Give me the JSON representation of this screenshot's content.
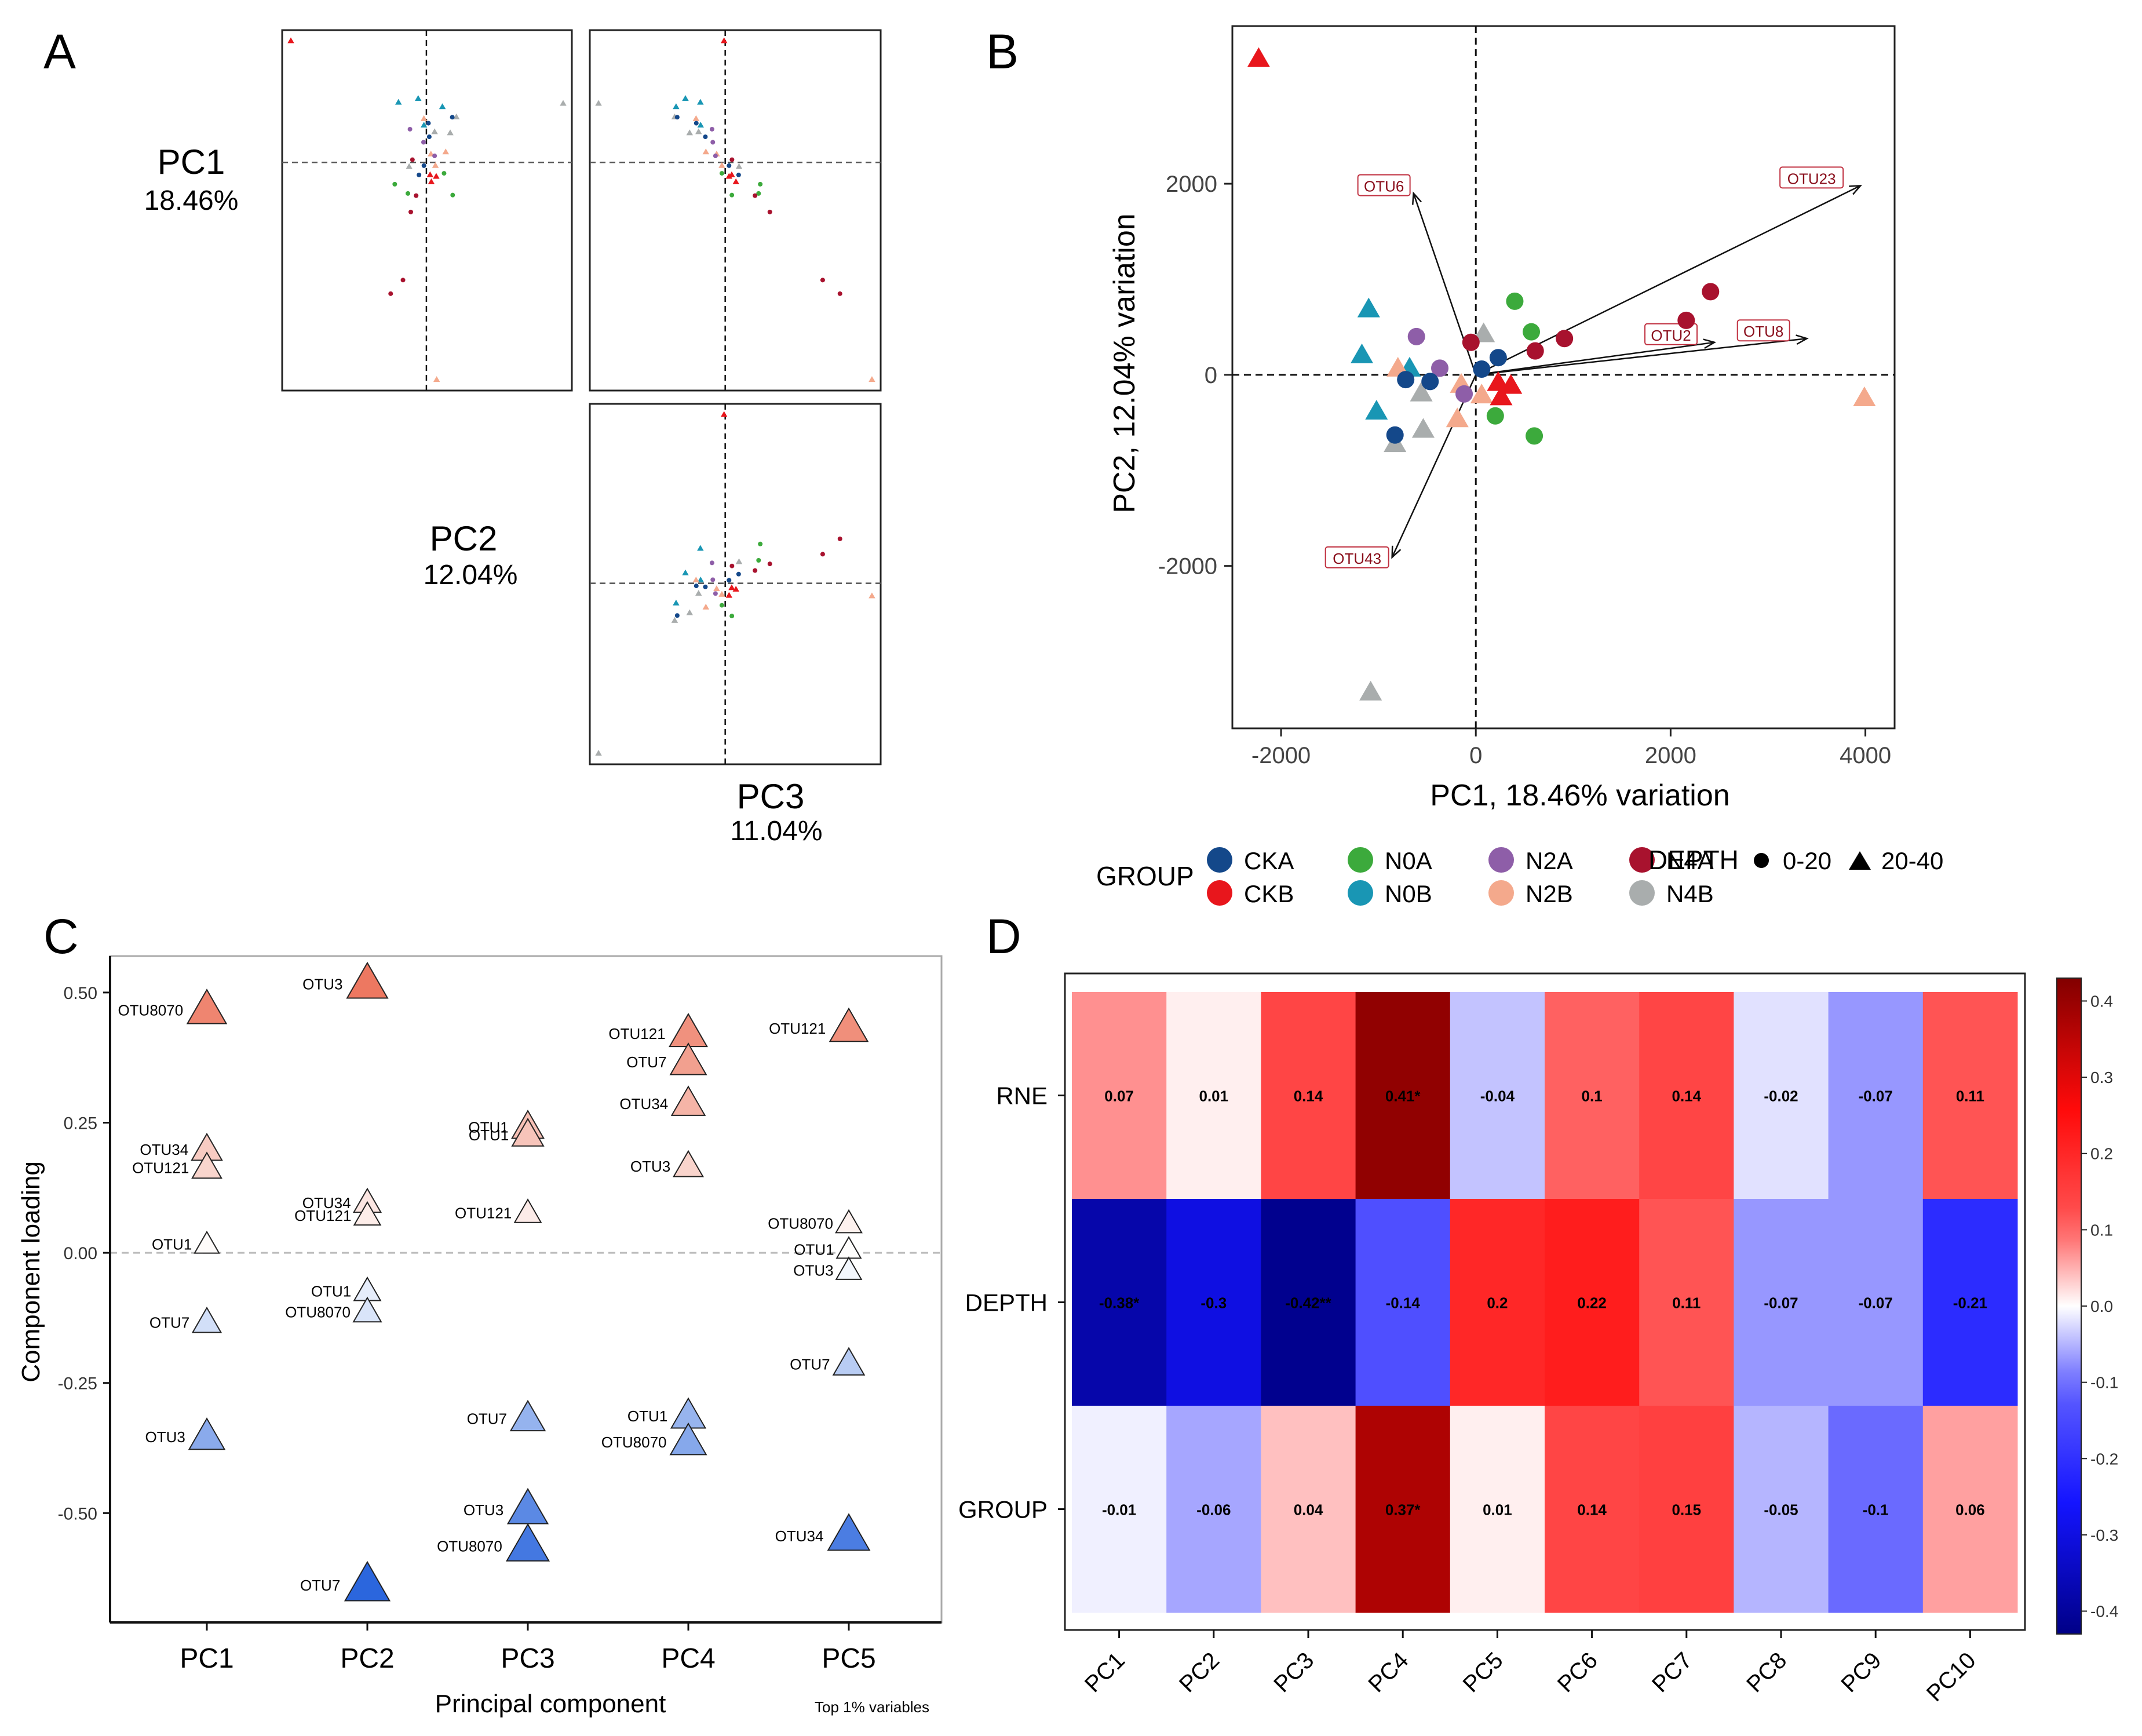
{
  "panels": {
    "A": {
      "letter": "A",
      "labels": [
        {
          "pc": "PC1",
          "pct": "18.46%"
        },
        {
          "pc": "PC2",
          "pct": "12.04%"
        },
        {
          "pc": "PC3",
          "pct": "11.04%"
        }
      ]
    },
    "B": {
      "letter": "B"
    },
    "C": {
      "letter": "C"
    },
    "D": {
      "letter": "D"
    }
  },
  "legend": {
    "group_title": "GROUP",
    "depth_title": "DEPTH",
    "groups": [
      {
        "name": "CKA",
        "color": "#14488a"
      },
      {
        "name": "N0A",
        "color": "#3caa3c"
      },
      {
        "name": "N2A",
        "color": "#8e5ea8"
      },
      {
        "name": "N4A",
        "color": "#a8122e"
      },
      {
        "name": "CKB",
        "color": "#e8161c"
      },
      {
        "name": "N0B",
        "color": "#1996b4"
      },
      {
        "name": "N2B",
        "color": "#f4a98c"
      },
      {
        "name": "N4B",
        "color": "#a9adad"
      }
    ],
    "depths": [
      {
        "name": "0-20",
        "shape": "circle"
      },
      {
        "name": "20-40",
        "shape": "triangle"
      }
    ]
  },
  "chart_data": [
    {
      "id": "B",
      "type": "scatter",
      "title": "",
      "xlabel": "PC1, 18.46% variation",
      "ylabel": "PC2, 12.04% variation",
      "xlim": [
        -2500,
        4300
      ],
      "ylim": [
        -3700,
        3650
      ],
      "xticks": [
        -2000,
        0,
        2000,
        4000
      ],
      "yticks": [
        -2000,
        0,
        2000
      ],
      "xtick_labels": [
        "-2000",
        "0",
        "2000",
        "4000"
      ],
      "ytick_labels": [
        "-2000",
        "0",
        "2000"
      ],
      "points": [
        {
          "g": "CKB",
          "s": "triangle",
          "x": -2230,
          "y": 3300
        },
        {
          "g": "N2B",
          "s": "triangle",
          "x": 3990,
          "y": -250
        },
        {
          "g": "N4B",
          "s": "triangle",
          "x": -1080,
          "y": -3330
        },
        {
          "g": "N0B",
          "s": "triangle",
          "x": -1100,
          "y": 680
        },
        {
          "g": "N0B",
          "s": "triangle",
          "x": -1170,
          "y": 200
        },
        {
          "g": "N0B",
          "s": "triangle",
          "x": -1020,
          "y": -390
        },
        {
          "g": "N0B",
          "s": "triangle",
          "x": -680,
          "y": 60
        },
        {
          "g": "N4B",
          "s": "triangle",
          "x": -830,
          "y": -730
        },
        {
          "g": "N4B",
          "s": "triangle",
          "x": -540,
          "y": -580
        },
        {
          "g": "N4B",
          "s": "triangle",
          "x": -560,
          "y": -200
        },
        {
          "g": "N4B",
          "s": "triangle",
          "x": 80,
          "y": 420
        },
        {
          "g": "N2B",
          "s": "triangle",
          "x": -800,
          "y": 60
        },
        {
          "g": "N2B",
          "s": "triangle",
          "x": -190,
          "y": -470
        },
        {
          "g": "N2B",
          "s": "triangle",
          "x": -150,
          "y": -110
        },
        {
          "g": "N2B",
          "s": "triangle",
          "x": 60,
          "y": -220
        },
        {
          "g": "CKB",
          "s": "triangle",
          "x": 260,
          "y": -240
        },
        {
          "g": "CKB",
          "s": "triangle",
          "x": 360,
          "y": -120
        },
        {
          "g": "CKB",
          "s": "triangle",
          "x": 230,
          "y": -90
        },
        {
          "g": "N2A",
          "s": "circle",
          "x": -610,
          "y": 400
        },
        {
          "g": "N2A",
          "s": "circle",
          "x": -370,
          "y": 70
        },
        {
          "g": "N2A",
          "s": "circle",
          "x": -120,
          "y": -200
        },
        {
          "g": "CKA",
          "s": "circle",
          "x": -470,
          "y": -70
        },
        {
          "g": "CKA",
          "s": "circle",
          "x": -720,
          "y": -50
        },
        {
          "g": "CKA",
          "s": "circle",
          "x": -830,
          "y": -630
        },
        {
          "g": "CKA",
          "s": "circle",
          "x": 230,
          "y": 180
        },
        {
          "g": "CKA",
          "s": "circle",
          "x": 60,
          "y": 60
        },
        {
          "g": "N0A",
          "s": "circle",
          "x": 400,
          "y": 770
        },
        {
          "g": "N0A",
          "s": "circle",
          "x": 570,
          "y": 450
        },
        {
          "g": "N0A",
          "s": "circle",
          "x": 600,
          "y": -640
        },
        {
          "g": "N0A",
          "s": "circle",
          "x": 200,
          "y": -430
        },
        {
          "g": "N4A",
          "s": "circle",
          "x": 2410,
          "y": 870
        },
        {
          "g": "N4A",
          "s": "circle",
          "x": 2160,
          "y": 570
        },
        {
          "g": "N4A",
          "s": "circle",
          "x": 910,
          "y": 380
        },
        {
          "g": "N4A",
          "s": "circle",
          "x": 610,
          "y": 250
        },
        {
          "g": "N4A",
          "s": "circle",
          "x": -50,
          "y": 340
        }
      ],
      "vectors": [
        {
          "label": "OTU6",
          "x": -640,
          "y": 1900
        },
        {
          "label": "OTU23",
          "x": 3950,
          "y": 1980
        },
        {
          "label": "OTU2",
          "x": 2450,
          "y": 340
        },
        {
          "label": "OTU8",
          "x": 3400,
          "y": 380
        },
        {
          "label": "OTU43",
          "x": -860,
          "y": -1910
        }
      ]
    },
    {
      "id": "C",
      "type": "scatter",
      "xlabel": "Principal component",
      "ylabel": "Component loading",
      "note": "Top 1% variables",
      "categories": [
        "PC1",
        "PC2",
        "PC3",
        "PC4",
        "PC5"
      ],
      "ylim": [
        -0.71,
        0.57
      ],
      "yticks": [
        0.5,
        0.25,
        0.0,
        -0.25,
        -0.5
      ],
      "ytick_labels": [
        "0.50",
        "0.25",
        "0.00",
        "-0.25",
        "-0.50"
      ],
      "points": [
        {
          "pc": "PC1",
          "label": "OTU8070",
          "v": 0.465
        },
        {
          "pc": "PC1",
          "label": "OTU34",
          "v": 0.197
        },
        {
          "pc": "PC1",
          "label": "OTU121",
          "v": 0.162
        },
        {
          "pc": "PC1",
          "label": "OTU1",
          "v": 0.015
        },
        {
          "pc": "PC1",
          "label": "OTU7",
          "v": -0.135
        },
        {
          "pc": "PC1",
          "label": "OTU3",
          "v": -0.355
        },
        {
          "pc": "PC2",
          "label": "OTU3",
          "v": 0.515
        },
        {
          "pc": "PC2",
          "label": "OTU34",
          "v": 0.095
        },
        {
          "pc": "PC2",
          "label": "OTU121",
          "v": 0.07
        },
        {
          "pc": "PC2",
          "label": "OTU1",
          "v": -0.075
        },
        {
          "pc": "PC2",
          "label": "OTU8070",
          "v": -0.115
        },
        {
          "pc": "PC2",
          "label": "OTU7",
          "v": -0.64
        },
        {
          "pc": "PC3",
          "label": "OTU1",
          "v": 0.24
        },
        {
          "pc": "PC3",
          "label": "OTU1",
          "v": 0.225
        },
        {
          "pc": "PC3",
          "label": "OTU121",
          "v": 0.075
        },
        {
          "pc": "PC3",
          "label": "OTU7",
          "v": -0.32
        },
        {
          "pc": "PC3",
          "label": "OTU3",
          "v": -0.495
        },
        {
          "pc": "PC3",
          "label": "OTU8070",
          "v": -0.565
        },
        {
          "pc": "PC4",
          "label": "OTU121",
          "v": 0.42
        },
        {
          "pc": "PC4",
          "label": "OTU7",
          "v": 0.365
        },
        {
          "pc": "PC4",
          "label": "OTU34",
          "v": 0.285
        },
        {
          "pc": "PC4",
          "label": "OTU3",
          "v": 0.165
        },
        {
          "pc": "PC4",
          "label": "OTU1",
          "v": -0.315
        },
        {
          "pc": "PC4",
          "label": "OTU8070",
          "v": -0.365
        },
        {
          "pc": "PC5",
          "label": "OTU121",
          "v": 0.43
        },
        {
          "pc": "PC5",
          "label": "OTU8070",
          "v": 0.055
        },
        {
          "pc": "PC5",
          "label": "OTU1",
          "v": 0.005
        },
        {
          "pc": "PC5",
          "label": "OTU3",
          "v": -0.035
        },
        {
          "pc": "PC5",
          "label": "OTU7",
          "v": -0.215
        },
        {
          "pc": "PC5",
          "label": "OTU34",
          "v": -0.545
        }
      ]
    },
    {
      "id": "D",
      "type": "heatmap",
      "columns": [
        "PC1",
        "PC2",
        "PC3",
        "PC4",
        "PC5",
        "PC6",
        "PC7",
        "PC8",
        "PC9",
        "PC10"
      ],
      "rows": [
        "RNE",
        "DEPTH",
        "GROUP"
      ],
      "values": [
        [
          0.07,
          0.01,
          0.14,
          0.41,
          -0.04,
          0.1,
          0.14,
          -0.02,
          -0.07,
          0.11
        ],
        [
          -0.38,
          -0.3,
          -0.42,
          -0.14,
          0.2,
          0.22,
          0.11,
          -0.07,
          -0.07,
          -0.21
        ],
        [
          -0.01,
          -0.06,
          0.04,
          0.37,
          0.01,
          0.14,
          0.15,
          -0.05,
          -0.1,
          0.06
        ]
      ],
      "cell_labels": [
        [
          "0.07",
          "0.01",
          "0.14",
          "0.41*",
          "-0.04",
          "0.1",
          "0.14",
          "-0.02",
          "-0.07",
          "0.11"
        ],
        [
          "-0.38*",
          "-0.3",
          "-0.42**",
          "-0.14",
          "0.2",
          "0.22",
          "0.11",
          "-0.07",
          "-0.07",
          "-0.21"
        ],
        [
          "-0.01",
          "-0.06",
          "0.04",
          "0.37*",
          "0.01",
          "0.14",
          "0.15",
          "-0.05",
          "-0.1",
          "0.06"
        ]
      ],
      "colorbar": {
        "min": -0.43,
        "max": 0.43,
        "ticks": [
          0.4,
          0.3,
          0.2,
          0.1,
          0.0,
          -0.1,
          -0.2,
          -0.3,
          -0.4
        ],
        "tick_labels": [
          "0.4",
          "0.3",
          "0.2",
          "0.1",
          "0.0",
          "-0.1",
          "-0.2",
          "-0.3",
          "-0.4"
        ]
      }
    }
  ]
}
